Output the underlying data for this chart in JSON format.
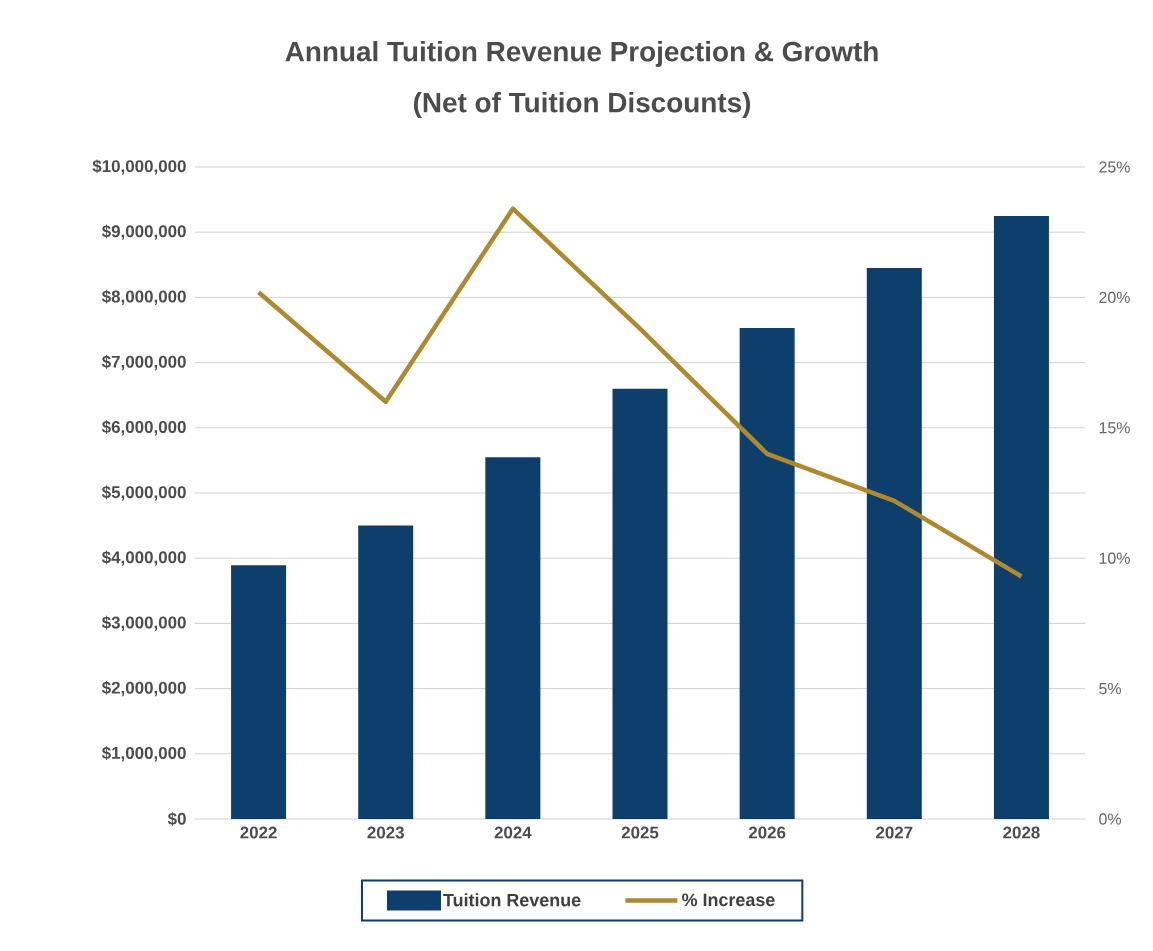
{
  "chart_data": {
    "type": "bar",
    "title": "Annual Tuition Revenue Projection & Growth",
    "subtitle": "(Net of Tuition Discounts)",
    "categories": [
      "2022",
      "2023",
      "2024",
      "2025",
      "2026",
      "2027",
      "2028"
    ],
    "series": [
      {
        "name": "Tuition Revenue",
        "color": "#0e3e6b",
        "values": [
          3890000,
          4500000,
          5550000,
          6600000,
          7530000,
          8450000,
          9250000
        ]
      },
      {
        "name": "% Increase",
        "type": "line",
        "axis": "y2",
        "color": "#ad8a2f",
        "values": [
          20.2,
          16.0,
          23.4,
          18.8,
          14.0,
          12.2,
          9.3
        ]
      }
    ],
    "ylim": [
      0,
      10000000
    ],
    "yticks": [
      {
        "value": 0,
        "label": "$0"
      },
      {
        "value": 1000000,
        "label": "$1,000,000"
      },
      {
        "value": 2000000,
        "label": "$2,000,000"
      },
      {
        "value": 3000000,
        "label": "$3,000,000"
      },
      {
        "value": 4000000,
        "label": "$4,000,000"
      },
      {
        "value": 5000000,
        "label": "$5,000,000"
      },
      {
        "value": 6000000,
        "label": "$6,000,000"
      },
      {
        "value": 7000000,
        "label": "$7,000,000"
      },
      {
        "value": 8000000,
        "label": "$8,000,000"
      },
      {
        "value": 9000000,
        "label": "$9,000,000"
      },
      {
        "value": 10000000,
        "label": "$10,000,000"
      }
    ],
    "y2lim": [
      0,
      25
    ],
    "y2ticks": [
      {
        "value": 0,
        "label": "0%"
      },
      {
        "value": 5,
        "label": "5%"
      },
      {
        "value": 10,
        "label": "10%"
      },
      {
        "value": 15,
        "label": "15%"
      },
      {
        "value": 20,
        "label": "20%"
      },
      {
        "value": 25,
        "label": "25%"
      }
    ],
    "grid": "y",
    "legend": "bottom",
    "marker": "none",
    "line_style": "solid"
  }
}
